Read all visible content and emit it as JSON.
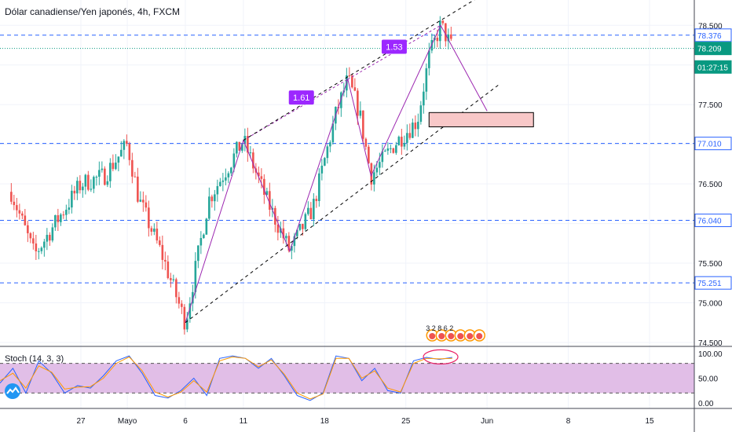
{
  "header": {
    "title": "Dólar canadiense/Yen japonés, 4h, FXCM"
  },
  "indicator": {
    "label": "Stoch (14, 3, 3)"
  },
  "colors": {
    "up": "#26a69a",
    "down": "#ef5350",
    "grid": "#f0f3fa",
    "blue_level": "#2962ff",
    "green_level": "#089981",
    "pattern": "#9c27b0",
    "label_bg": "#9c27ff",
    "stoch_bg": "#e1bee7",
    "stoch_k": "#2962ff",
    "stoch_d": "#ff9800",
    "zone": "#f8c8c8"
  },
  "chart_data": [
    {
      "type": "candlestick",
      "title": "Dólar canadiense/Yen japonés, 4h, FXCM",
      "x_ticks": [
        "27",
        "Mayo",
        "6",
        "11",
        "18",
        "25",
        "Jun",
        "8",
        "15"
      ],
      "y_ticks": [
        "78.500",
        "78.000",
        "77.500",
        "77.000",
        "76.500",
        "76.000",
        "75.500",
        "75.000",
        "74.500"
      ],
      "ylim": [
        74.45,
        78.82
      ],
      "price_labels": [
        {
          "value": 78.376,
          "text": "78.376",
          "kind": "level"
        },
        {
          "value": 78.209,
          "text": "78.209",
          "kind": "current"
        },
        {
          "value": 77.975,
          "text": "01:27:15",
          "kind": "countdown"
        },
        {
          "value": 77.01,
          "text": "77.010",
          "kind": "level"
        },
        {
          "value": 76.04,
          "text": "76.040",
          "kind": "level"
        },
        {
          "value": 75.251,
          "text": "75.251",
          "kind": "level"
        }
      ],
      "horizontal_levels": [
        78.376,
        77.01,
        76.04,
        75.251
      ],
      "current_price": 78.209,
      "pattern_labels": [
        "1.61",
        "1.53"
      ],
      "volume_marks_label": "3 2 8 6 2",
      "anchors": [
        {
          "date": "Apr 21",
          "price": 76.4
        },
        {
          "date": "Apr 23",
          "price": 75.6
        },
        {
          "date": "Apr 27",
          "price": 76.5
        },
        {
          "date": "Apr 29",
          "price": 76.6
        },
        {
          "date": "May 1",
          "price": 77.0
        },
        {
          "date": "May 2",
          "price": 76.3
        },
        {
          "date": "May 4",
          "price": 75.6
        },
        {
          "date": "May 6",
          "price": 74.75
        },
        {
          "date": "May 8",
          "price": 76.3
        },
        {
          "date": "May 11",
          "price": 77.05
        },
        {
          "date": "May 13",
          "price": 76.3
        },
        {
          "date": "May 15",
          "price": 75.65
        },
        {
          "date": "May 17",
          "price": 76.2
        },
        {
          "date": "May 19",
          "price": 77.4
        },
        {
          "date": "May 20",
          "price": 77.82
        },
        {
          "date": "May 21",
          "price": 77.4
        },
        {
          "date": "May 22",
          "price": 76.6
        },
        {
          "date": "May 24",
          "price": 77.0
        },
        {
          "date": "May 26",
          "price": 77.3
        },
        {
          "date": "May 27",
          "price": 78.1
        },
        {
          "date": "May 28",
          "price": 78.5
        },
        {
          "date": "May 29",
          "price": 78.21
        }
      ]
    },
    {
      "type": "line",
      "title": "Stoch (14, 3, 3)",
      "y_ticks": [
        "100.00",
        "50.00",
        "0.00"
      ],
      "ylim": [
        0,
        100
      ],
      "levels": [
        80,
        20
      ],
      "series": [
        {
          "color": "#2962ff",
          "values": [
            40,
            70,
            20,
            85,
            60,
            20,
            35,
            30,
            55,
            85,
            95,
            60,
            15,
            10,
            25,
            50,
            15,
            90,
            95,
            90,
            70,
            90,
            55,
            15,
            5,
            20,
            95,
            90,
            45,
            70,
            25,
            20,
            85,
            92,
            88,
            92
          ]
        },
        {
          "color": "#ff9800",
          "values": [
            45,
            60,
            30,
            75,
            62,
            28,
            32,
            33,
            50,
            80,
            93,
            65,
            22,
            12,
            22,
            45,
            22,
            85,
            93,
            90,
            73,
            87,
            58,
            20,
            8,
            18,
            90,
            90,
            50,
            65,
            30,
            22,
            80,
            90,
            89,
            90
          ]
        }
      ]
    }
  ]
}
